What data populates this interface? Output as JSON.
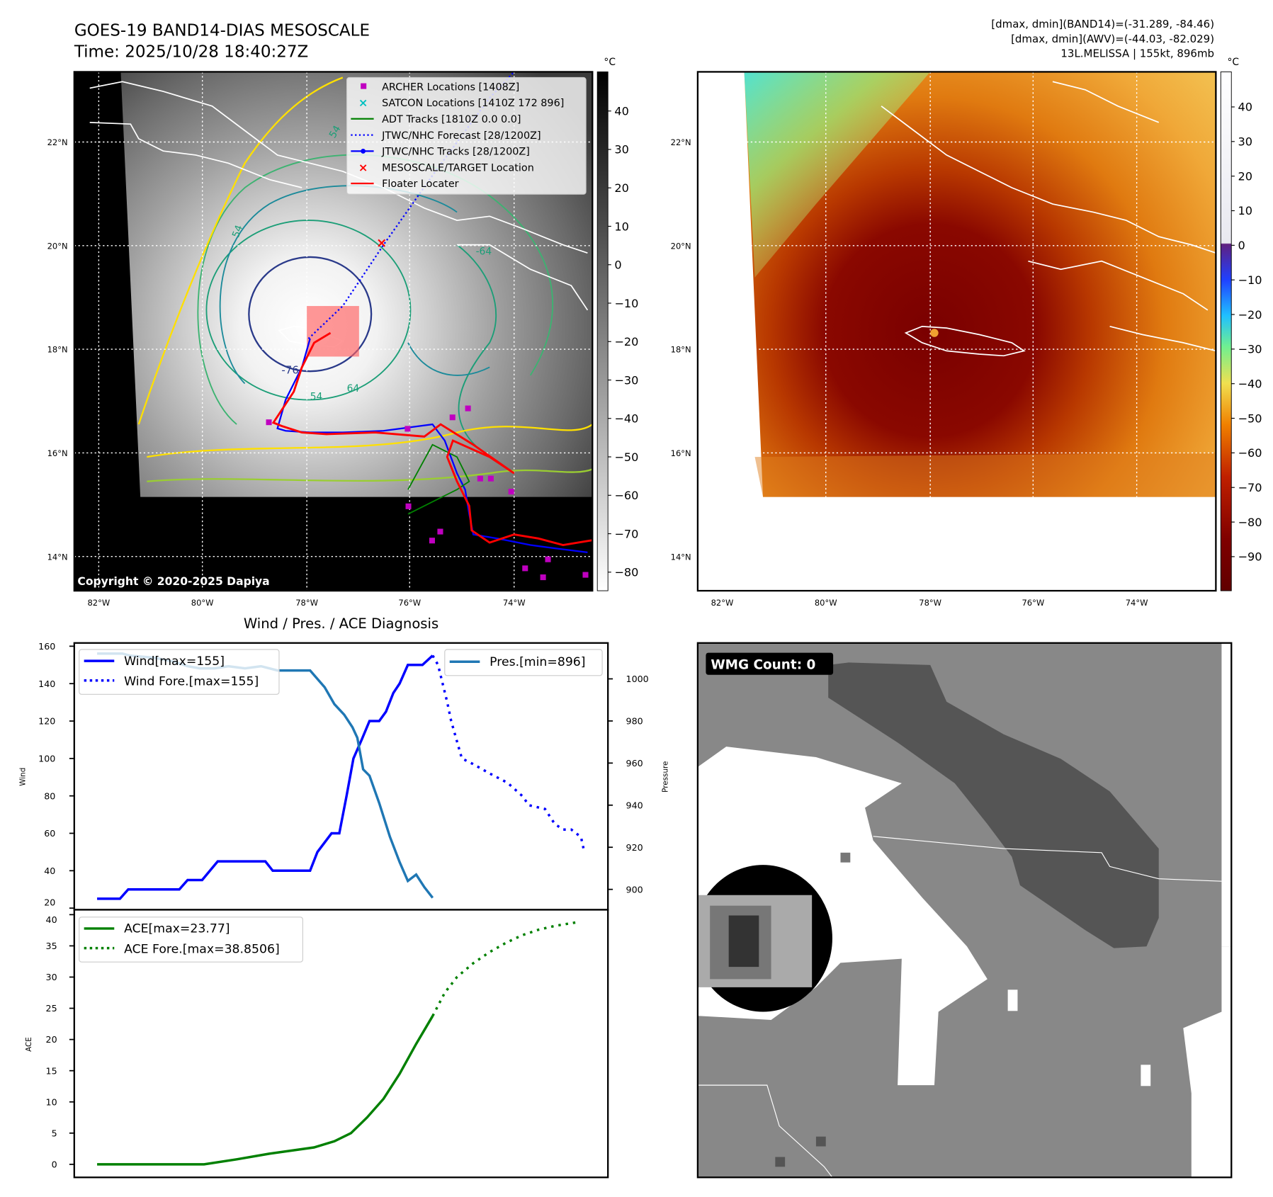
{
  "header": {
    "title": "GOES-19 BAND14-DIAS MESOSCALE",
    "time": "Time: 2025/10/28 18:40:27Z",
    "stats": [
      "[dmax, dmin](BAND14)=(-31.289, -84.46)",
      "[dmax, dmin](AWV)=(-44.03, -82.029)",
      "13L.MELISSA | 155kt, 896mb"
    ]
  },
  "map_left": {
    "lat_labels": [
      "22°N",
      "20°N",
      "18°N",
      "16°N",
      "14°N"
    ],
    "lon_labels": [
      "82°W",
      "80°W",
      "78°W",
      "76°W",
      "74°W"
    ],
    "colorbar": {
      "unit": "°C",
      "ticks": [
        "40",
        "30",
        "20",
        "10",
        "0",
        "−10",
        "−20",
        "−30",
        "−40",
        "−50",
        "−60",
        "−70",
        "−80"
      ]
    },
    "legend": [
      {
        "label": "ARCHER Locations [1408Z]",
        "color": "#c000c0",
        "marker": "square"
      },
      {
        "label": "SATCON Locations [1410Z 172 896]",
        "color": "#00c0c0",
        "marker": "x"
      },
      {
        "label": "ADT Tracks [1810Z 0.0 0.0]",
        "color": "#008000",
        "marker": "line"
      },
      {
        "label": "JTWC/NHC Forecast [28/1200Z]",
        "color": "#0000ff",
        "marker": "dotted"
      },
      {
        "label": "JTWC/NHC Tracks [28/1200Z]",
        "color": "#0000ff",
        "marker": "line-dot"
      },
      {
        "label": "MESOSCALE/TARGET Location",
        "color": "#ff0000",
        "marker": "x"
      },
      {
        "label": "Floater Locater",
        "color": "#ff0000",
        "marker": "line"
      }
    ],
    "contour_labels": [
      "54",
      "-76",
      "64",
      "54",
      "-64",
      "54"
    ],
    "copyright": "Copyright © 2020-2025 Dapiya"
  },
  "map_right": {
    "lat_labels": [
      "22°N",
      "20°N",
      "18°N",
      "16°N",
      "14°N"
    ],
    "lon_labels": [
      "82°W",
      "80°W",
      "78°W",
      "76°W",
      "74°W"
    ],
    "colorbar": {
      "unit": "°C",
      "ticks": [
        "40",
        "30",
        "20",
        "10",
        "0",
        "−10",
        "−20",
        "−30",
        "−40",
        "−50",
        "−60",
        "−70",
        "−80",
        "−90"
      ]
    }
  },
  "chart_data": [
    {
      "type": "line",
      "title": "Wind / Pres. / ACE Diagnosis",
      "ylabel": "Wind",
      "ylabel_right": "Pressure",
      "ylim": [
        20,
        160
      ],
      "ylim_right": [
        890,
        1012
      ],
      "yticks": [
        20,
        40,
        60,
        80,
        100,
        120,
        140,
        160
      ],
      "yticks_right": [
        900,
        920,
        940,
        960,
        980,
        1000
      ],
      "series": [
        {
          "name": "Wind[max=155]",
          "color": "#0000ff",
          "style": "solid",
          "x": [
            0,
            4.7,
            6.4,
            16.9,
            18.6,
            21.6,
            24.8,
            34.6,
            36.1,
            43.8,
            45.3,
            48.2,
            49.8,
            51.3,
            52.7,
            54.4,
            56,
            58,
            59.4,
            60.9,
            62.2,
            63.9,
            66.9,
            69
          ],
          "values": [
            25,
            25,
            30,
            30,
            35,
            35,
            45,
            45,
            40,
            40,
            50,
            60,
            60,
            80,
            100,
            110,
            120,
            120,
            125,
            135,
            140,
            150,
            150,
            155
          ]
        },
        {
          "name": "Wind Fore.[max=155]",
          "color": "#0000ff",
          "style": "dotted",
          "x": [
            69,
            70.1,
            72,
            72.8,
            75,
            77.3,
            80.7,
            84.4,
            87.4,
            88.8,
            92.1,
            94.1,
            95.8,
            97.5,
            99.5,
            100
          ],
          "values": [
            155,
            150,
            130,
            120,
            100,
            97,
            92,
            87,
            80,
            75,
            73,
            65,
            62,
            62,
            58,
            52
          ]
        },
        {
          "name": "Pres.[min=896]",
          "color": "#1f77b4",
          "style": "solid",
          "axis": "right",
          "x": [
            0,
            5.2,
            6.9,
            11.9,
            16.1,
            18.6,
            21.1,
            24.2,
            27,
            30.4,
            33.7,
            37.1,
            43.8,
            46.8,
            48.8,
            50.8,
            52.5,
            53.5,
            54.7,
            56,
            58,
            60.2,
            62.2,
            63.9,
            65.6,
            67.3,
            69
          ],
          "values": [
            1012,
            1012,
            1011,
            1010,
            1008,
            1006,
            1005,
            1005,
            1006,
            1005,
            1006,
            1004,
            1004,
            996,
            988,
            983,
            977,
            972,
            957,
            954,
            941,
            925,
            913,
            904,
            907,
            901,
            896
          ]
        }
      ]
    },
    {
      "type": "line",
      "ylabel": "ACE",
      "ylim": [
        -2,
        40
      ],
      "yticks": [
        0,
        5,
        10,
        15,
        20,
        25,
        30,
        35,
        40
      ],
      "series": [
        {
          "name": "ACE[max=23.77]",
          "color": "#008000",
          "style": "solid",
          "x": [
            0,
            22,
            28.7,
            35.4,
            44.6,
            48.8,
            52.2,
            55.5,
            58.9,
            62.2,
            65.6,
            69
          ],
          "values": [
            0,
            0,
            0.8,
            1.7,
            2.7,
            3.7,
            5,
            7.5,
            10.5,
            14.5,
            19.3,
            23.77
          ]
        },
        {
          "name": "ACE Fore.[max=38.8506]",
          "color": "#008000",
          "style": "dotted",
          "x": [
            69,
            71.5,
            74,
            77.3,
            80.7,
            84.1,
            87.4,
            90.8,
            94.1,
            99.2
          ],
          "values": [
            23.77,
            27.5,
            30,
            32.2,
            34,
            35.5,
            36.7,
            37.6,
            38.2,
            38.85
          ]
        }
      ]
    }
  ],
  "wmg": {
    "label": "WMG Count: 0"
  }
}
